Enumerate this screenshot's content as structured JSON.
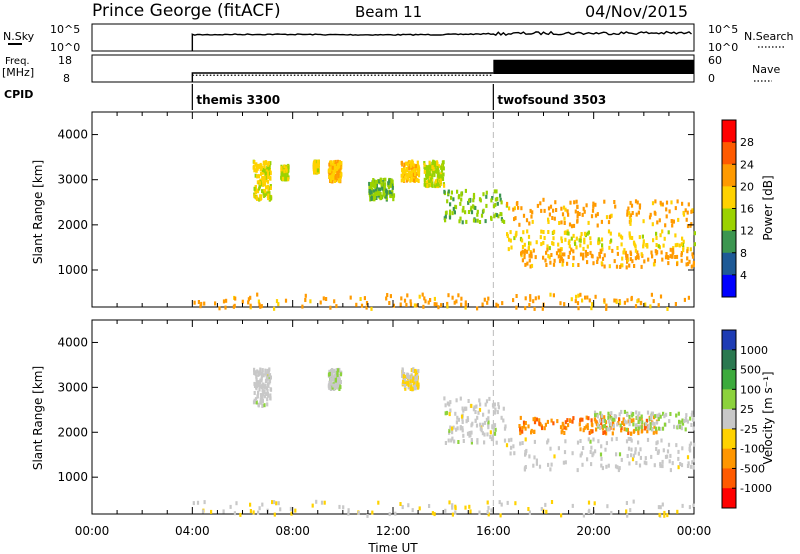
{
  "header": {
    "title": "Prince George (fitACF)",
    "beam": "Beam 11",
    "date": "04/Nov/2015"
  },
  "top_panels": {
    "nsky_label": "N.Sky",
    "nsky_ticks": [
      "10^5",
      "10^0"
    ],
    "nsearch_label": "N.Search",
    "nsearch_ticks": [
      "10^5",
      "10^0"
    ],
    "freq_label": "Freq.",
    "freq_unit": "[MHz]",
    "freq_ticks": [
      "18",
      "8"
    ],
    "nave_label": "Nave",
    "nave_ticks": [
      "60",
      "0"
    ],
    "cpid_label": "CPID",
    "cpid_segments": [
      {
        "label": "themis 3300",
        "start_hour": 4
      },
      {
        "label": "twofsound 3503",
        "start_hour": 16
      }
    ]
  },
  "power_panel": {
    "ylabel": "Slant Range [km]",
    "colorbar_label": "Power [dB]",
    "colorbar_ticks": [
      "28",
      "24",
      "20",
      "16",
      "12",
      "8",
      "4"
    ],
    "colorbar_colors": [
      "#ff0000",
      "#ff5a00",
      "#ff9a00",
      "#ffd200",
      "#9bd200",
      "#3c9650",
      "#1e5a96",
      "#0000ff"
    ]
  },
  "velocity_panel": {
    "ylabel": "Slant Range [km]",
    "colorbar_label": "Velocity [m s⁻¹]",
    "colorbar_ticks": [
      "1000",
      "500",
      "100",
      "25",
      "-25",
      "-100",
      "-500",
      "-1000"
    ],
    "colorbar_colors": [
      "#1e3cb4",
      "#2a7850",
      "#3caa3c",
      "#8cd23c",
      "#c8c8c8",
      "#ffd200",
      "#ff9600",
      "#ff5a00",
      "#ff0000"
    ]
  },
  "chart_data": [
    {
      "type": "line",
      "title": "Prince George (fitACF)",
      "xlabel": "",
      "ylabel": "N.Sky",
      "xlim": [
        0,
        24
      ],
      "series": [
        {
          "name": "N.Sky",
          "x": [
            4,
            6,
            8,
            10,
            12,
            14,
            16,
            18,
            20,
            22,
            24
          ],
          "values": [
            1000.0,
            1200.0,
            1200.0,
            1000.0,
            1000.0,
            1100.0,
            1500.0,
            2000.0,
            2000.0,
            2200.0,
            2000.0
          ]
        }
      ]
    },
    {
      "type": "line",
      "xlabel": "",
      "ylabel": "Freq. [MHz]",
      "ylim": [
        8,
        18
      ],
      "xlim": [
        0,
        24
      ],
      "series": [
        {
          "name": "Freq.",
          "x": [
            4,
            16,
            16.01,
            24
          ],
          "values": [
            10.5,
            10.5,
            10.5,
            10.5
          ]
        },
        {
          "name": "Nave",
          "x": [
            4,
            16,
            16.01,
            24
          ],
          "values": [
            20,
            20,
            45,
            45
          ]
        }
      ]
    },
    {
      "type": "heatmap",
      "title": "Beam 11",
      "xlabel": "Time UT",
      "ylabel": "Slant Range [km]",
      "xlim": [
        0,
        24
      ],
      "ylim": [
        180,
        4500
      ],
      "x_ticks": [
        "00:00",
        "04:00",
        "08:00",
        "12:00",
        "16:00",
        "20:00",
        "00:00"
      ],
      "y_ticks": [
        "1000",
        "2000",
        "3000",
        "4000"
      ],
      "zlabel": "Power [dB]",
      "zlim": [
        0,
        30
      ],
      "regions": [
        {
          "t": [
            6.4,
            7.1
          ],
          "r": [
            2600,
            3450
          ],
          "z": 16
        },
        {
          "t": [
            7.5,
            7.8
          ],
          "r": [
            3050,
            3350
          ],
          "z": 14
        },
        {
          "t": [
            8.8,
            9.0
          ],
          "r": [
            3200,
            3450
          ],
          "z": 16
        },
        {
          "t": [
            9.4,
            9.9
          ],
          "r": [
            3000,
            3450
          ],
          "z": 18
        },
        {
          "t": [
            11.0,
            12.0
          ],
          "r": [
            2600,
            3050
          ],
          "z": 12
        },
        {
          "t": [
            12.3,
            13.0
          ],
          "r": [
            3000,
            3450
          ],
          "z": 18
        },
        {
          "t": [
            13.2,
            14.0
          ],
          "r": [
            2900,
            3450
          ],
          "z": 14
        },
        {
          "t": [
            14.0,
            16.5
          ],
          "r": [
            2100,
            2800
          ],
          "z": 12
        },
        {
          "t": [
            16.5,
            24.0
          ],
          "r": [
            2000,
            2600
          ],
          "z": 20
        },
        {
          "t": [
            16.5,
            24.0
          ],
          "r": [
            1500,
            1900
          ],
          "z": 16
        },
        {
          "t": [
            17.0,
            24.0
          ],
          "r": [
            1100,
            1500
          ],
          "z": 20
        },
        {
          "t": [
            4.0,
            24.0
          ],
          "r": [
            180,
            500
          ],
          "z": 20
        }
      ]
    },
    {
      "type": "heatmap",
      "xlabel": "Time UT",
      "ylabel": "Slant Range [km]",
      "xlim": [
        0,
        24
      ],
      "ylim": [
        180,
        4500
      ],
      "x_ticks": [
        "00:00",
        "04:00",
        "08:00",
        "12:00",
        "16:00",
        "20:00",
        "00:00"
      ],
      "y_ticks": [
        "1000",
        "2000",
        "3000",
        "4000"
      ],
      "zlabel": "Velocity [m s⁻¹]",
      "zlim": [
        -1000,
        1000
      ],
      "regions": [
        {
          "t": [
            6.4,
            7.1
          ],
          "r": [
            2600,
            3450
          ],
          "z": 0
        },
        {
          "t": [
            9.4,
            9.9
          ],
          "r": [
            3000,
            3450
          ],
          "z": 50
        },
        {
          "t": [
            12.3,
            13.0
          ],
          "r": [
            3000,
            3450
          ],
          "z": -100
        },
        {
          "t": [
            14.0,
            16.5
          ],
          "r": [
            1800,
            2800
          ],
          "z": 0
        },
        {
          "t": [
            17.0,
            22.5
          ],
          "r": [
            2000,
            2400
          ],
          "z": -500
        },
        {
          "t": [
            20.0,
            24.0
          ],
          "r": [
            2100,
            2500
          ],
          "z": 100
        },
        {
          "t": [
            16.5,
            24.0
          ],
          "r": [
            1200,
            1900
          ],
          "z": 0
        },
        {
          "t": [
            4.0,
            24.0
          ],
          "r": [
            180,
            500
          ],
          "z": -100
        }
      ]
    }
  ]
}
